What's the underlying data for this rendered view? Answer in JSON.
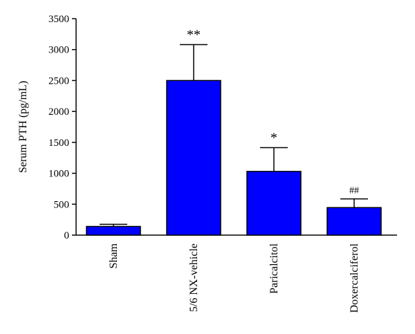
{
  "chart_data": {
    "type": "bar",
    "title": "",
    "xlabel": "",
    "ylabel": "Serum PTH (pg/mL)",
    "ylim": [
      0,
      3500
    ],
    "yticks": [
      0,
      500,
      1000,
      1500,
      2000,
      2500,
      3000,
      3500
    ],
    "categories": [
      "Sham",
      "5/6 NX-vehicle",
      "Paricalcitol",
      "Doxercalciferol"
    ],
    "values": [
      140,
      2500,
      1030,
      445
    ],
    "error_upper": [
      175,
      3080,
      1415,
      585
    ],
    "annotations": [
      "",
      "**",
      "*",
      "##"
    ],
    "grid": false,
    "legend": "none",
    "bar_color": "#0000ff",
    "edge_color": "#000000"
  }
}
